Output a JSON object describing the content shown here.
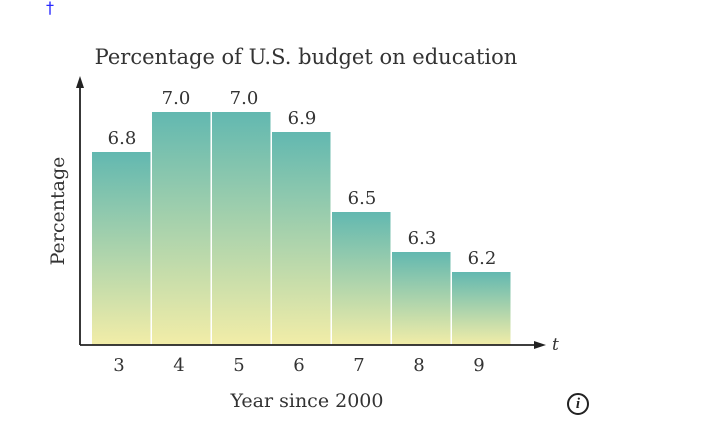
{
  "marker": "†",
  "info_icon": "i",
  "chart_data": {
    "type": "bar",
    "title": "Percentage of U.S. budget on education",
    "xlabel": "Year since 2000",
    "ylabel": "Percentage",
    "x_axis_var": "t",
    "categories": [
      "3",
      "4",
      "5",
      "6",
      "7",
      "8",
      "9"
    ],
    "values": [
      6.8,
      7.0,
      7.0,
      6.9,
      6.5,
      6.3,
      6.2
    ],
    "data_labels": [
      "6.8",
      "7.0",
      "7.0",
      "6.9",
      "6.5",
      "6.3",
      "6.2"
    ],
    "ylim": [
      5.835,
      7.35
    ],
    "grid": false,
    "colors": {
      "top": "#62b8b0",
      "bottom": "#f2eda8",
      "text": "#333333",
      "axis": "#222222"
    }
  }
}
